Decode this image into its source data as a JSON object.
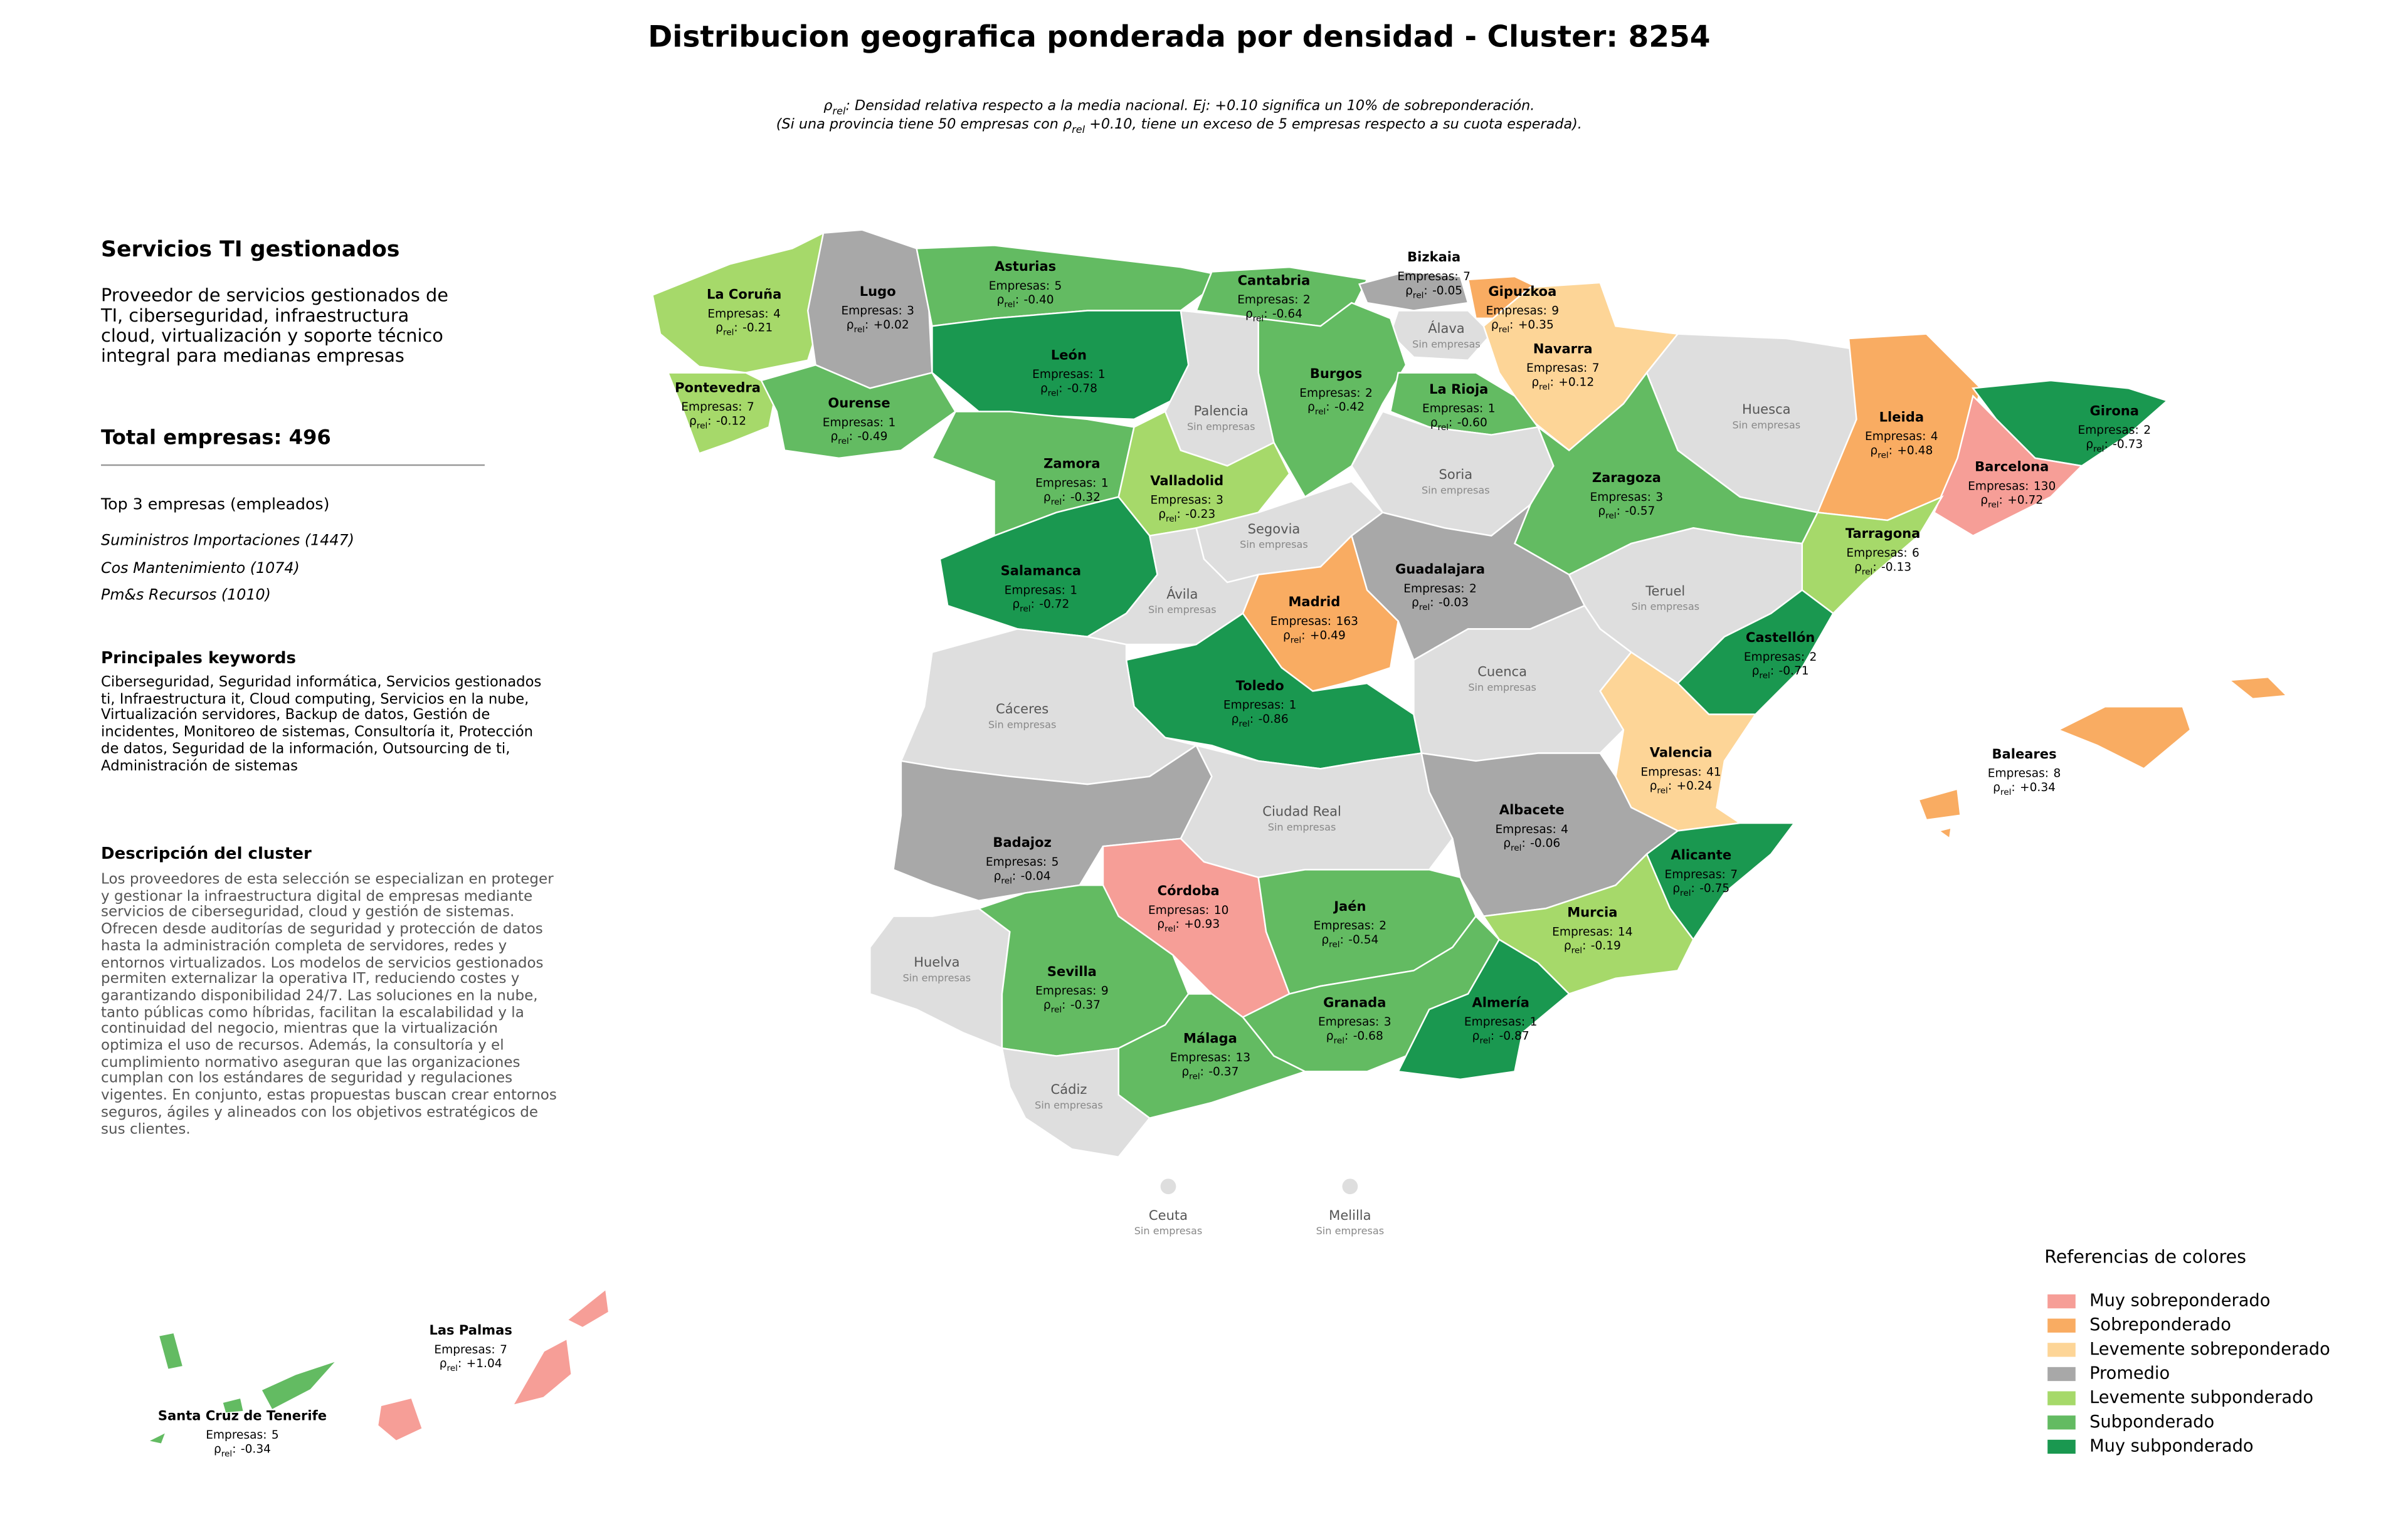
{
  "title": "Distribucion geografica ponderada por densidad - Cluster: 8254",
  "subtitle": [
    {
      "symbol": "ρ",
      "subscript": "rel",
      "after": ": Densidad relativa respecto a la media nacional. Ej: +0.10 significa un 10% de sobreponderación."
    },
    {
      "before": "(Si una provincia tiene 50 empresas con ",
      "symbol": "ρ",
      "subscript": "rel",
      "after": " +0.10, tiene un exceso de 5 empresas respecto a su cuota esperada)."
    }
  ],
  "panel": {
    "heading": "Servicios TI gestionados",
    "description": "Proveedor de servicios gestionados de TI, ciberseguridad, infraestructura cloud, virtualización y soporte técnico integral para medianas empresas",
    "total_label": "Total empresas:",
    "total_value": 496,
    "top_heading": "Top 3 empresas (empleados)",
    "top_companies": [
      "Suministros Importaciones (1447)",
      "Cos Mantenimiento (1074)",
      "Pm&s Recursos (1010)"
    ],
    "keywords_heading": "Principales keywords",
    "keywords": "Ciberseguridad, Seguridad informática, Servicios gestionados ti, Infraestructura it, Cloud computing, Servicios en la nube, Virtualización servidores, Backup de datos, Gestión de incidentes, Monitoreo de sistemas, Consultoría it, Protección de datos, Seguridad de la información, Outsourcing de ti, Administración de sistemas",
    "cluster_heading": "Descripción del cluster",
    "cluster_description": "Los proveedores de esta selección se especializan en proteger y gestionar la infraestructura digital de empresas mediante servicios de ciberseguridad, cloud y gestión de sistemas. Ofrecen desde auditorías de seguridad y protección de datos hasta la administración completa de servidores, redes y entornos virtualizados. Los modelos de servicios gestionados permiten externalizar la operativa IT, reduciendo costes y garantizando disponibilidad 24/7. Las soluciones en la nube, tanto públicas como híbridas, facilitan la escalabilidad y la continuidad del negocio, mientras que la virtualización optimiza el uso de recursos. Además, la consultoría y el cumplimiento normativo aseguran que las organizaciones cumplan con los estándares de seguridad y regulaciones vigentes. En conjunto, estas propuestas buscan crear entornos seguros, ágiles y alineados con los objetivos estratégicos de sus clientes."
  },
  "labels": {
    "count": "Empresas:",
    "rho_symbol": "ρ",
    "rho_subscript": "rel",
    "rho_separator": ":",
    "no_companies": "Sin empresas"
  },
  "legend": {
    "title": "Referencias de colores",
    "empty_color": "#dedede",
    "items": [
      {
        "label": "Muy sobreponderado",
        "color": "#f69e97"
      },
      {
        "label": "Sobreponderado",
        "color": "#f9ac62"
      },
      {
        "label": "Levemente sobreponderado",
        "color": "#fdd597"
      },
      {
        "label": "Promedio",
        "color": "#a8a8a8"
      },
      {
        "label": "Levemente subponderado",
        "color": "#a6d96a"
      },
      {
        "label": "Subponderado",
        "color": "#63bb62"
      },
      {
        "label": "Muy subponderado",
        "color": "#1a9850"
      }
    ]
  },
  "provinces": [
    {
      "name": "La Coruña",
      "companies": 4,
      "rho": "-0.21",
      "level": 4
    },
    {
      "name": "Lugo",
      "companies": 3,
      "rho": "+0.02",
      "level": 3
    },
    {
      "name": "Asturias",
      "companies": 5,
      "rho": "-0.40",
      "level": 5
    },
    {
      "name": "Cantabria",
      "companies": 2,
      "rho": "-0.64",
      "level": 5
    },
    {
      "name": "Bizkaia",
      "companies": 7,
      "rho": "-0.05",
      "level": 3
    },
    {
      "name": "Gipuzkoa",
      "companies": 9,
      "rho": "+0.35",
      "level": 1
    },
    {
      "name": "Álava"
    },
    {
      "name": "Navarra",
      "companies": 7,
      "rho": "+0.12",
      "level": 2
    },
    {
      "name": "Pontevedra",
      "companies": 7,
      "rho": "-0.12",
      "level": 4
    },
    {
      "name": "Ourense",
      "companies": 1,
      "rho": "-0.49",
      "level": 5
    },
    {
      "name": "León",
      "companies": 1,
      "rho": "-0.78",
      "level": 6
    },
    {
      "name": "Palencia"
    },
    {
      "name": "Burgos",
      "companies": 2,
      "rho": "-0.42",
      "level": 5
    },
    {
      "name": "La Rioja",
      "companies": 1,
      "rho": "-0.60",
      "level": 5
    },
    {
      "name": "Huesca"
    },
    {
      "name": "Lleida",
      "companies": 4,
      "rho": "+0.48",
      "level": 1
    },
    {
      "name": "Girona",
      "companies": 2,
      "rho": "-0.73",
      "level": 6
    },
    {
      "name": "Barcelona",
      "companies": 130,
      "rho": "+0.72",
      "level": 0
    },
    {
      "name": "Zamora",
      "companies": 1,
      "rho": "-0.32",
      "level": 5
    },
    {
      "name": "Valladolid",
      "companies": 3,
      "rho": "-0.23",
      "level": 4
    },
    {
      "name": "Soria"
    },
    {
      "name": "Zaragoza",
      "companies": 3,
      "rho": "-0.57",
      "level": 5
    },
    {
      "name": "Tarragona",
      "companies": 6,
      "rho": "-0.13",
      "level": 4
    },
    {
      "name": "Segovia"
    },
    {
      "name": "Salamanca",
      "companies": 1,
      "rho": "-0.72",
      "level": 6
    },
    {
      "name": "Guadalajara",
      "companies": 2,
      "rho": "-0.03",
      "level": 3
    },
    {
      "name": "Ávila"
    },
    {
      "name": "Teruel"
    },
    {
      "name": "Madrid",
      "companies": 163,
      "rho": "+0.49",
      "level": 1
    },
    {
      "name": "Castellón",
      "companies": 2,
      "rho": "-0.71",
      "level": 6
    },
    {
      "name": "Toledo",
      "companies": 1,
      "rho": "-0.86",
      "level": 6
    },
    {
      "name": "Cáceres"
    },
    {
      "name": "Cuenca"
    },
    {
      "name": "Valencia",
      "companies": 41,
      "rho": "+0.24",
      "level": 2
    },
    {
      "name": "Baleares",
      "companies": 8,
      "rho": "+0.34",
      "level": 1
    },
    {
      "name": "Ciudad Real"
    },
    {
      "name": "Albacete",
      "companies": 4,
      "rho": "-0.06",
      "level": 3
    },
    {
      "name": "Badajoz",
      "companies": 5,
      "rho": "-0.04",
      "level": 3
    },
    {
      "name": "Alicante",
      "companies": 7,
      "rho": "-0.75",
      "level": 6
    },
    {
      "name": "Córdoba",
      "companies": 10,
      "rho": "+0.93",
      "level": 0
    },
    {
      "name": "Jaén",
      "companies": 2,
      "rho": "-0.54",
      "level": 5
    },
    {
      "name": "Murcia",
      "companies": 14,
      "rho": "-0.19",
      "level": 4
    },
    {
      "name": "Huelva"
    },
    {
      "name": "Sevilla",
      "companies": 9,
      "rho": "-0.37",
      "level": 5
    },
    {
      "name": "Granada",
      "companies": 3,
      "rho": "-0.68",
      "level": 5
    },
    {
      "name": "Almería",
      "companies": 1,
      "rho": "-0.87",
      "level": 6
    },
    {
      "name": "Málaga",
      "companies": 13,
      "rho": "-0.37",
      "level": 5
    },
    {
      "name": "Cádiz"
    },
    {
      "name": "Ceuta"
    },
    {
      "name": "Melilla"
    },
    {
      "name": "Las Palmas",
      "companies": 7,
      "rho": "+1.04",
      "level": 0
    },
    {
      "name": "Santa Cruz de Tenerife",
      "companies": 5,
      "rho": "-0.34",
      "level": 5
    }
  ]
}
